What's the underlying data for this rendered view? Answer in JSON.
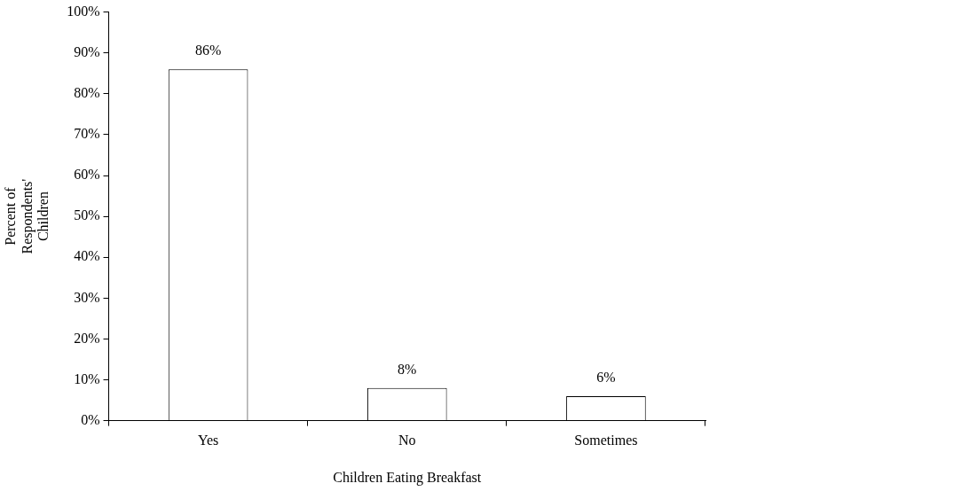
{
  "chart_data": {
    "type": "bar",
    "xlabel": "Children Eating Breakfast",
    "ylabel": "Percent of Respondents' Children",
    "categories": [
      "Yes",
      "No",
      "Sometimes"
    ],
    "values": [
      86,
      8,
      6
    ],
    "color": "#ffffff",
    "value_labels": [
      "86%",
      "8%",
      "6%"
    ],
    "ylim": [
      0,
      100
    ],
    "yticks": [
      {
        "value": 0,
        "label": "0%"
      },
      {
        "value": 10,
        "label": "10%"
      },
      {
        "value": 20,
        "label": "20%"
      },
      {
        "value": 30,
        "label": "30%"
      },
      {
        "value": 40,
        "label": "40%"
      },
      {
        "value": 50,
        "label": "50%"
      },
      {
        "value": 60,
        "label": "60%"
      },
      {
        "value": 70,
        "label": "70%"
      },
      {
        "value": 80,
        "label": "80%"
      },
      {
        "value": 90,
        "label": "90%"
      },
      {
        "value": 100,
        "label": "100%"
      }
    ],
    "grid": false,
    "legend": false
  }
}
